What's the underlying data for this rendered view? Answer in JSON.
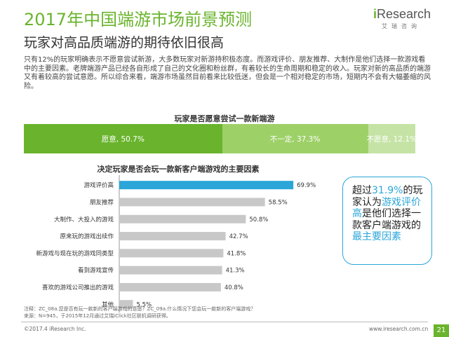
{
  "header": {
    "title": "2017年中国端游市场前景预测",
    "logo": {
      "word_prefix": "i",
      "word_rest": "Research",
      "sub": "艾瑞咨询"
    },
    "subtitle": "玩家对高品质端游的期待依旧很高"
  },
  "body_text": "只有12%的玩家明确表示不愿意尝试新游，大多数玩家对新游持积极态度。而游戏评价、朋友推荐、大制作是他们选择一款游戏看中的主要因素。老牌端游产品已经各自形成了自己的文化圈和粉丝群，有着较长的生命周期和稳定的收入。玩家对新的高品质的端游又有着较高的尝试意愿。所以综合来看，端游市场虽然目前看来比较低迷，但会是一个相对稳定的市场，短期内不会有大幅萎缩的风险。",
  "colors": {
    "accent_green": "#6ab42d",
    "mid_green": "#9ed068",
    "light_green": "#c5e3a5",
    "blue": "#2aa6d8",
    "bar_gray": "#c8c8c8"
  },
  "chart_data": [
    {
      "type": "bar",
      "orientation": "horizontal-stacked",
      "title": "玩家是否愿意尝试一款新端游",
      "categories": [
        "愿意",
        "不一定",
        "不愿意"
      ],
      "values": [
        50.7,
        37.3,
        12.1
      ],
      "labels": [
        "愿意, 50.7%",
        "不一定, 37.3%",
        "不愿意, 12.1%"
      ],
      "colors": [
        "#6ab42d",
        "#9ed068",
        "#c5e3a5"
      ]
    },
    {
      "type": "bar",
      "orientation": "horizontal",
      "title": "决定玩家是否会玩一款新客户端游戏的主要因素",
      "categories": [
        "游戏评价高",
        "朋友推荐",
        "大制作、大投入的游戏",
        "原来玩的游戏出续作",
        "新游戏与现在玩的游戏同类型",
        "看到游戏宣传",
        "喜欢的游戏公司推出的游戏",
        "其他"
      ],
      "values": [
        69.9,
        58.5,
        50.8,
        42.7,
        41.8,
        41.3,
        40.8,
        5.5
      ],
      "labels": [
        "69.9%",
        "58.5%",
        "50.8%",
        "42.7%",
        "41.8%",
        "41.3%",
        "40.8%",
        "5.5%"
      ],
      "highlight_index": 0,
      "highlight_color": "#2aa6d8",
      "bar_color": "#c8c8c8"
    }
  ],
  "callout": {
    "p1": "超过",
    "p2": "31.9%",
    "p3": "的玩家认为",
    "p4": "游戏评价高",
    "p5": "是他们选择一款客户端游戏的",
    "p6": "最主要因素"
  },
  "notes": {
    "line1": "注释：ZC_08a.您是否有玩一款新的客户端游戏的意愿？ZC_09a.什么情况下您会玩一款新的客户端游戏？",
    "line2": "来源：N=945，于2015年12月通过艾瑞iClick社区联机调研获得。"
  },
  "footer": {
    "copyright": "©2017.4 iResearch Inc.",
    "url": "www.iresearch.com.cn",
    "page": "21"
  }
}
